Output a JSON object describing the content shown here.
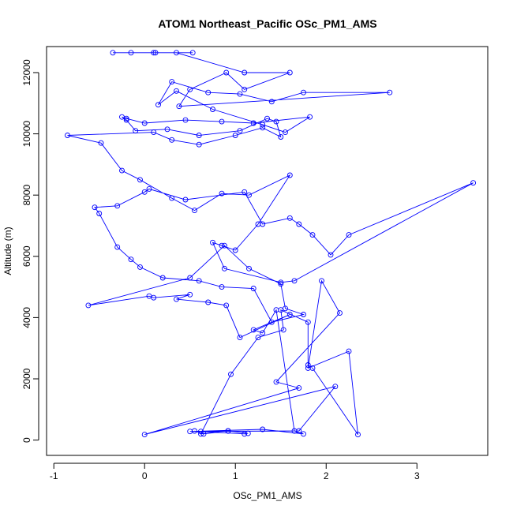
{
  "chart_data": {
    "type": "line",
    "title": "ATOM1 Northeast_Pacific OSc_PM1_AMS",
    "xlabel": "OSc_PM1_AMS",
    "ylabel": "Altitude (m)",
    "xlim": [
      -1.08,
      3.78
    ],
    "ylim": [
      -500,
      12850
    ],
    "x_ticks": [
      -1,
      0,
      1,
      2,
      3
    ],
    "y_ticks": [
      0,
      2000,
      4000,
      6000,
      8000,
      10000,
      12000
    ],
    "line_color": "#0000ff",
    "marker": "open-circle",
    "series": [
      {
        "x": [
          0.55,
          0.65,
          0.92,
          0.62,
          1.1,
          1.14,
          0.92,
          0.62,
          0.95,
          1.25,
          1.53,
          1.5,
          1.8,
          1.8,
          1.85,
          2.35,
          2.25,
          1.8,
          1.95,
          2.15,
          1.45,
          1.7,
          0.0,
          2.1,
          1.7,
          0.5,
          1.3,
          1.75,
          1.65,
          1.45,
          1.3,
          1.2,
          1.6,
          1.05,
          0.9,
          0.7,
          0.35,
          0.5,
          0.1,
          0.05,
          -0.62,
          0.5,
          0.88,
          1.15,
          1.5,
          1.55,
          1.75,
          1.4,
          1.2,
          0.85,
          0.6,
          0.2,
          -0.05,
          -0.15,
          -0.3,
          -0.5,
          -0.55,
          -0.3,
          0.0,
          0.05,
          0.45,
          1.1,
          1.3,
          1.6,
          1.7,
          1.85,
          2.05,
          2.25,
          3.62,
          1.65,
          1.5,
          0.88,
          0.75,
          0.85,
          1.0,
          1.25,
          1.6,
          1.15,
          0.85,
          0.55,
          0.3,
          -0.05,
          -0.25,
          -0.48,
          -0.85,
          0.1,
          0.3,
          0.6,
          1.0,
          1.3,
          1.5,
          1.45,
          1.35,
          1.05,
          0.6,
          0.25,
          -0.1,
          -0.2,
          -0.25,
          -0.2,
          0.0,
          0.45,
          0.85,
          1.2,
          1.82,
          1.55,
          1.3,
          0.75,
          0.35,
          0.15,
          0.3,
          0.7,
          1.05,
          1.4,
          1.75,
          2.7,
          0.38,
          0.5,
          0.9,
          1.1,
          1.6,
          1.1,
          0.35,
          0.12,
          -0.15,
          -0.35,
          0.1,
          0.53
        ],
        "y": [
          300,
          200,
          300,
          280,
          200,
          220,
          300,
          200,
          2150,
          3350,
          3600,
          4250,
          3850,
          2450,
          2350,
          180,
          2900,
          2350,
          5200,
          4150,
          1900,
          1700,
          180,
          1750,
          300,
          280,
          350,
          200,
          300,
          4250,
          3500,
          3600,
          4100,
          3350,
          4400,
          4500,
          4600,
          4750,
          4650,
          4700,
          4400,
          5300,
          6350,
          5600,
          5100,
          4300,
          4100,
          3850,
          4950,
          5000,
          5200,
          5300,
          5650,
          5900,
          6300,
          7400,
          7600,
          7650,
          8100,
          8200,
          7850,
          8100,
          7050,
          7250,
          7050,
          6700,
          6050,
          6700,
          8400,
          5200,
          5150,
          5600,
          6450,
          6350,
          6200,
          7050,
          8650,
          8000,
          8050,
          7500,
          7900,
          8500,
          8800,
          9700,
          9950,
          10050,
          9800,
          9650,
          9950,
          10200,
          9900,
          10400,
          10500,
          10100,
          9950,
          10150,
          10100,
          10450,
          10550,
          10500,
          10350,
          10450,
          10400,
          10350,
          10550,
          10050,
          10300,
          10800,
          11400,
          10950,
          11700,
          11350,
          11300,
          11050,
          11350,
          11350,
          10900,
          11450,
          12000,
          11450,
          12000,
          12000,
          12650,
          12650,
          12650,
          12650,
          12650,
          12650
        ]
      }
    ]
  }
}
